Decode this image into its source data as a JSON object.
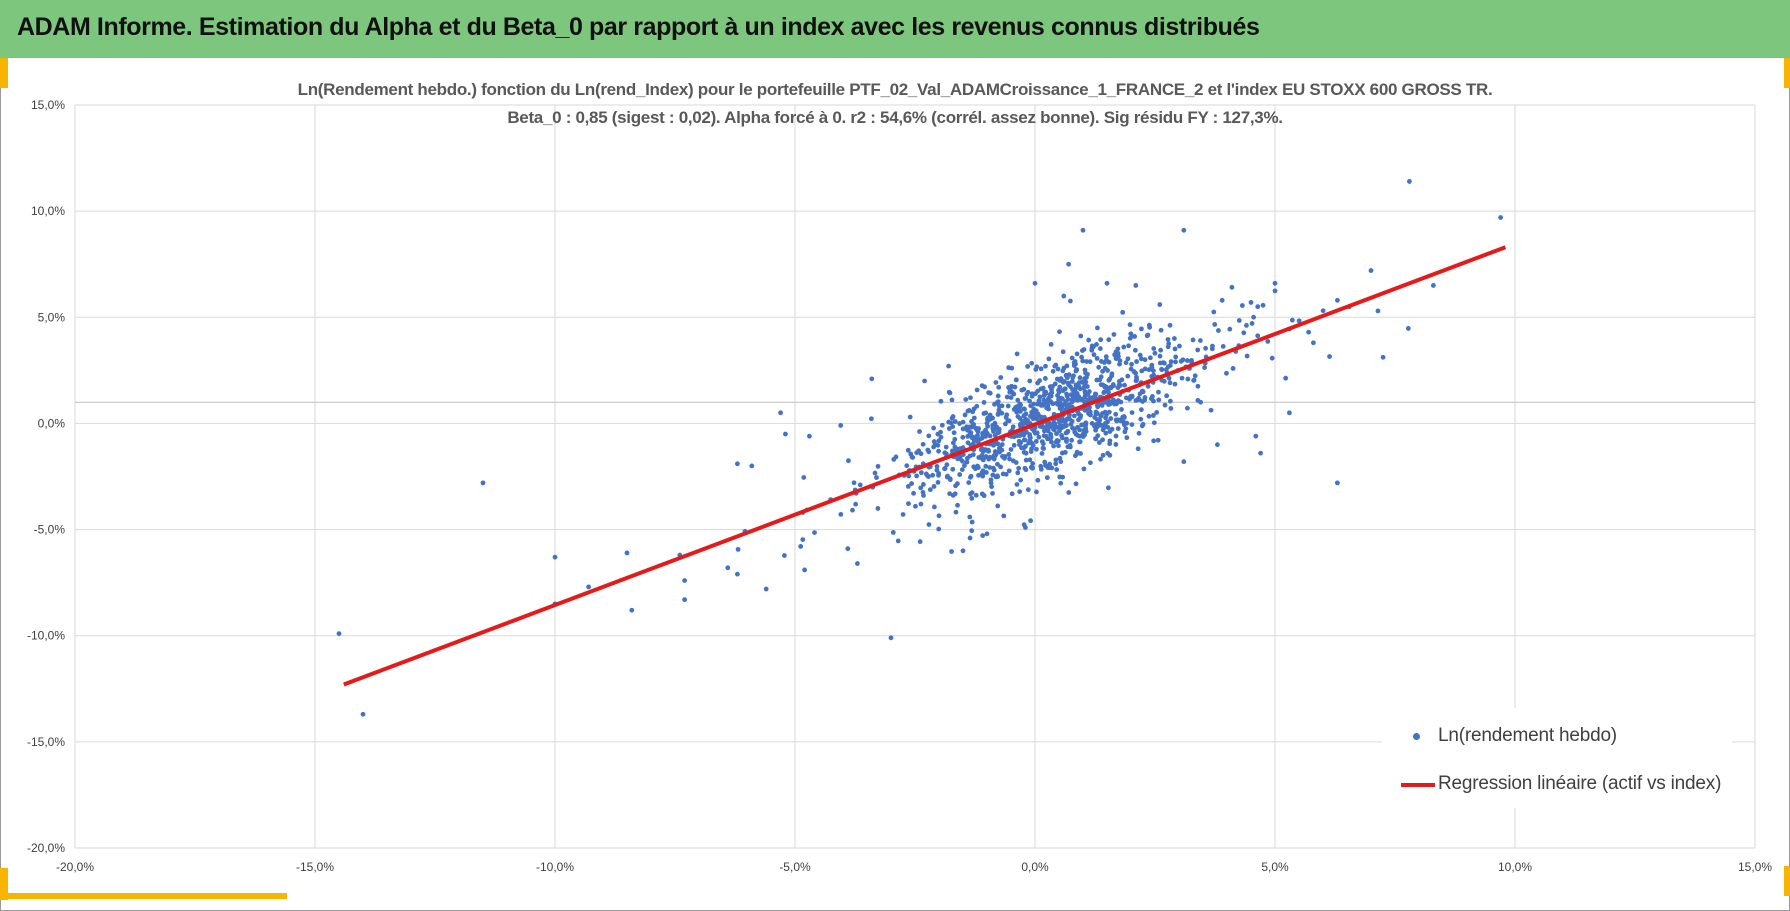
{
  "header": {
    "title": "ADAM Informe. Estimation du Alpha et du Beta_0 par rapport à un index avec les revenus connus distribués"
  },
  "colors": {
    "header_bg": "#7dc67e",
    "accent": "#f7b500",
    "scatter": "#4472c4",
    "regression": "#e51a1a",
    "grid": "#d9d9d9"
  },
  "chart_data": {
    "type": "scatter",
    "title_lines": [
      "Ln(Rendement hebdo.) fonction du Ln(rend_Index) pour le portefeuille PTF_02_Val_ADAMCroissance_1_FRANCE_2 et l'index EU STOXX 600 GROSS TR.",
      "Beta_0 : 0,85 (sigest : 0,02).  Alpha forcé à 0. r2 : 54,6% (corrél. assez bonne). Sig résidu FY : 127,3%."
    ],
    "xlabel": "",
    "ylabel": "",
    "xlim": [
      -20,
      15
    ],
    "ylim": [
      -20,
      15
    ],
    "x_ticks": [
      -20,
      -15,
      -10,
      -5,
      0,
      5,
      10,
      15
    ],
    "y_ticks": [
      15,
      10,
      5,
      0,
      -5,
      -10,
      -15,
      -20
    ],
    "x_tick_labels": [
      "-20,0%",
      "-15,0%",
      "-10,0%",
      "-5,0%",
      "0,0%",
      "5,0%",
      "10,0%",
      "15,0%"
    ],
    "y_tick_labels": [
      "15,0%",
      "10,0%",
      "5,0%",
      "0,0%",
      "-5,0%",
      "-10,0%",
      "-15,0%",
      "-20,0%"
    ],
    "grid": true,
    "legend_position": "bottom-right",
    "series": [
      {
        "name": "Ln(rendement hebdo)",
        "kind": "scatter",
        "color": "#4472c4",
        "points": [
          [
            -14.5,
            -9.9
          ],
          [
            -14.0,
            -13.7
          ],
          [
            -11.5,
            -2.8
          ],
          [
            -10.0,
            -6.3
          ],
          [
            -10.0,
            -8.5
          ],
          [
            -9.3,
            -7.7
          ],
          [
            -8.5,
            -6.1
          ],
          [
            -8.4,
            -8.8
          ],
          [
            -7.4,
            -6.2
          ],
          [
            -7.3,
            -7.4
          ],
          [
            -7.3,
            -8.3
          ],
          [
            -6.4,
            -6.8
          ],
          [
            -6.2,
            -7.1
          ],
          [
            -6.2,
            -1.9
          ],
          [
            -5.9,
            -2.0
          ],
          [
            -5.6,
            -7.8
          ],
          [
            -5.3,
            0.5
          ],
          [
            -5.2,
            -0.5
          ],
          [
            -4.8,
            -6.9
          ],
          [
            -4.7,
            -0.6
          ],
          [
            -3.9,
            -5.9
          ],
          [
            -3.7,
            -6.6
          ],
          [
            -3.4,
            2.1
          ],
          [
            -3.0,
            -10.1
          ],
          [
            -2.6,
            0.3
          ],
          [
            -2.3,
            2.0
          ],
          [
            -1.8,
            2.7
          ],
          [
            -1.5,
            -6.0
          ],
          [
            -1.0,
            -5.2
          ],
          [
            -0.2,
            -4.9
          ],
          [
            0.0,
            6.6
          ],
          [
            0.6,
            6.0
          ],
          [
            0.7,
            7.5
          ],
          [
            1.0,
            9.1
          ],
          [
            1.5,
            6.6
          ],
          [
            2.1,
            6.5
          ],
          [
            3.1,
            9.1
          ],
          [
            3.8,
            -1.0
          ],
          [
            3.1,
            -1.8
          ],
          [
            4.6,
            -0.6
          ],
          [
            4.7,
            -1.4
          ],
          [
            5.3,
            0.5
          ],
          [
            6.3,
            -2.8
          ],
          [
            5.7,
            4.3
          ],
          [
            5.8,
            3.8
          ],
          [
            6.3,
            5.8
          ],
          [
            7.0,
            7.2
          ],
          [
            7.8,
            11.4
          ],
          [
            8.3,
            6.5
          ],
          [
            9.7,
            9.7
          ],
          [
            5.0,
            6.6
          ],
          [
            4.5,
            5.7
          ],
          [
            3.9,
            5.8
          ],
          [
            2.6,
            5.6
          ],
          [
            1.3,
            4.5
          ]
        ],
        "cloud": {
          "n": 1150,
          "seed": 987,
          "x_center": 0.3,
          "x_sd": 1.45,
          "slope": 0.85,
          "resid_sd": 1.35
        }
      },
      {
        "name": "Regression linéaire (actif vs index)",
        "kind": "line",
        "color": "#e51a1a",
        "points": [
          [
            -14.4,
            -12.3
          ],
          [
            9.8,
            8.3
          ]
        ]
      }
    ]
  }
}
